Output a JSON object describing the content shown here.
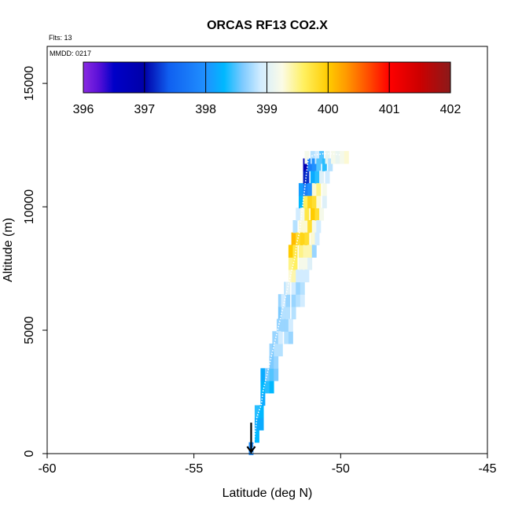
{
  "chart_data": {
    "type": "heatmap",
    "title": "ORCAS RF13 CO2.X",
    "xlabel": "Latitude (deg N)",
    "ylabel": "Altitude (m)",
    "annotations": {
      "flights": "Flts: 13",
      "date": "MMDD: 0217"
    },
    "xlim": [
      -60,
      -45
    ],
    "ylim": [
      0,
      16500
    ],
    "x_ticks": [
      -60,
      -55,
      -50,
      -45
    ],
    "y_ticks": [
      0,
      5000,
      10000,
      15000
    ],
    "colorbar": {
      "range": [
        396,
        402
      ],
      "ticks": [
        396,
        397,
        398,
        399,
        400,
        401,
        402
      ],
      "palette": [
        {
          "v": 396.0,
          "c": "#8a2be2"
        },
        {
          "v": 396.25,
          "c": "#5a10d8"
        },
        {
          "v": 396.5,
          "c": "#0000c8"
        },
        {
          "v": 397.0,
          "c": "#0000a8"
        },
        {
          "v": 397.4,
          "c": "#1060f0"
        },
        {
          "v": 398.0,
          "c": "#2090ff"
        },
        {
          "v": 398.3,
          "c": "#00b8ff"
        },
        {
          "v": 398.6,
          "c": "#7ccaff"
        },
        {
          "v": 398.9,
          "c": "#d2ecff"
        },
        {
          "v": 399.25,
          "c": "#fbfbe6"
        },
        {
          "v": 399.6,
          "c": "#fff060"
        },
        {
          "v": 400.0,
          "c": "#ffcc00"
        },
        {
          "v": 400.3,
          "c": "#ff9900"
        },
        {
          "v": 400.7,
          "c": "#ff4400"
        },
        {
          "v": 401.0,
          "c": "#ff0000"
        },
        {
          "v": 401.5,
          "c": "#cc0000"
        },
        {
          "v": 402.0,
          "c": "#8b1a1a"
        }
      ]
    },
    "cells": [
      [
        -53.05,
        200,
        398.0
      ],
      [
        -52.85,
        700,
        398.3
      ],
      [
        -52.85,
        1200,
        398.2
      ],
      [
        -52.85,
        1700,
        398.4
      ],
      [
        -52.7,
        1200,
        398.2
      ],
      [
        -52.7,
        1700,
        398.3
      ],
      [
        -52.65,
        2200,
        398.2
      ],
      [
        -52.65,
        2700,
        398.3
      ],
      [
        -52.65,
        3200,
        398.2
      ],
      [
        -52.5,
        2700,
        398.4
      ],
      [
        -52.5,
        3200,
        398.6
      ],
      [
        -52.35,
        2700,
        398.3
      ],
      [
        -52.35,
        3200,
        398.5
      ],
      [
        -52.35,
        3700,
        398.6
      ],
      [
        -52.35,
        4200,
        398.7
      ],
      [
        -52.25,
        3700,
        398.6
      ],
      [
        -52.25,
        4200,
        398.6
      ],
      [
        -52.25,
        4700,
        398.7
      ],
      [
        -52.2,
        3200,
        398.6
      ],
      [
        -52.2,
        3700,
        398.7
      ],
      [
        -52.2,
        4200,
        398.8
      ],
      [
        -52.1,
        4700,
        398.7
      ],
      [
        -52.1,
        5200,
        398.7
      ],
      [
        -52.05,
        4200,
        398.8
      ],
      [
        -52.05,
        4700,
        398.9
      ],
      [
        -52.05,
        5700,
        398.6
      ],
      [
        -52.05,
        6200,
        398.7
      ],
      [
        -51.95,
        5200,
        398.7
      ],
      [
        -51.95,
        5700,
        398.8
      ],
      [
        -51.95,
        6200,
        398.9
      ],
      [
        -51.85,
        4700,
        398.8
      ],
      [
        -51.85,
        5200,
        398.7
      ],
      [
        -51.85,
        6700,
        398.8
      ],
      [
        -51.8,
        5700,
        398.8
      ],
      [
        -51.8,
        6200,
        398.7
      ],
      [
        -51.8,
        6700,
        399.0
      ],
      [
        -51.7,
        4700,
        398.7
      ],
      [
        -51.7,
        5200,
        398.9
      ],
      [
        -51.7,
        7200,
        399.3
      ],
      [
        -51.7,
        7700,
        399.5
      ],
      [
        -51.7,
        8200,
        400.0
      ],
      [
        -51.6,
        5700,
        398.8
      ],
      [
        -51.6,
        6200,
        398.7
      ],
      [
        -51.6,
        6700,
        398.9
      ],
      [
        -51.6,
        7200,
        399.4
      ],
      [
        -51.6,
        8700,
        400.1
      ],
      [
        -51.55,
        7700,
        399.6
      ],
      [
        -51.55,
        8200,
        399.7
      ],
      [
        -51.55,
        9200,
        398.8
      ],
      [
        -51.45,
        6200,
        398.8
      ],
      [
        -51.45,
        6700,
        398.7
      ],
      [
        -51.45,
        7200,
        398.9
      ],
      [
        -51.45,
        8700,
        399.8
      ],
      [
        -51.45,
        9700,
        398.9
      ],
      [
        -51.35,
        7700,
        399.2
      ],
      [
        -51.35,
        8200,
        399.5
      ],
      [
        -51.35,
        9200,
        399.3
      ],
      [
        -51.35,
        10200,
        398.3
      ],
      [
        -51.35,
        10700,
        398.1
      ],
      [
        -51.3,
        6200,
        398.9
      ],
      [
        -51.3,
        6700,
        398.8
      ],
      [
        -51.3,
        7200,
        398.9
      ],
      [
        -51.3,
        8700,
        399.9
      ],
      [
        -51.3,
        9700,
        399.2
      ],
      [
        -51.2,
        7700,
        399.2
      ],
      [
        -51.2,
        8200,
        399.4
      ],
      [
        -51.2,
        9200,
        399.3
      ],
      [
        -51.2,
        10200,
        399.6
      ],
      [
        -51.2,
        10700,
        397.8
      ],
      [
        -51.2,
        11200,
        397.1
      ],
      [
        -51.2,
        11700,
        396.8
      ],
      [
        -51.15,
        7200,
        398.9
      ],
      [
        -51.15,
        8700,
        399.8
      ],
      [
        -51.15,
        9700,
        399.7
      ],
      [
        -51.15,
        11200,
        397.2
      ],
      [
        -51.15,
        12000,
        399.2
      ],
      [
        -51.05,
        7700,
        399.0
      ],
      [
        -51.05,
        8200,
        399.4
      ],
      [
        -51.05,
        9200,
        399.8
      ],
      [
        -51.05,
        10200,
        399.9
      ],
      [
        -51.05,
        10700,
        398.0
      ],
      [
        -51.05,
        11700,
        397.8
      ],
      [
        -50.95,
        8700,
        399.3
      ],
      [
        -50.95,
        9700,
        400.0
      ],
      [
        -50.95,
        11200,
        398.2
      ],
      [
        -50.95,
        12000,
        398.8
      ],
      [
        -50.9,
        8200,
        398.7
      ],
      [
        -50.9,
        9200,
        399.2
      ],
      [
        -50.9,
        10200,
        399.8
      ],
      [
        -50.9,
        10700,
        399.3
      ],
      [
        -50.9,
        11700,
        398.0
      ],
      [
        -50.8,
        8700,
        398.9
      ],
      [
        -50.8,
        9700,
        399.8
      ],
      [
        -50.8,
        11200,
        398.4
      ],
      [
        -50.8,
        12000,
        398.9
      ],
      [
        -50.75,
        9200,
        398.9
      ],
      [
        -50.75,
        10200,
        399.3
      ],
      [
        -50.75,
        10700,
        399.5
      ],
      [
        -50.75,
        11700,
        398.5
      ],
      [
        -50.65,
        9700,
        399.2
      ],
      [
        -50.65,
        11200,
        399.0
      ],
      [
        -50.65,
        12000,
        398.5
      ],
      [
        -50.55,
        10200,
        399.0
      ],
      [
        -50.55,
        10700,
        399.2
      ],
      [
        -50.55,
        11700,
        398.4
      ],
      [
        -50.45,
        11200,
        398.9
      ],
      [
        -50.45,
        12000,
        399.1
      ],
      [
        -50.35,
        11700,
        398.8
      ],
      [
        -50.25,
        12000,
        399.2
      ],
      [
        -50.1,
        12000,
        399.1
      ],
      [
        -49.95,
        12000,
        399.2
      ],
      [
        -49.8,
        12000,
        399.3
      ]
    ],
    "track": [
      [
        -53.0,
        0
      ],
      [
        -52.95,
        500
      ],
      [
        -52.9,
        1000
      ],
      [
        -52.85,
        1500
      ],
      [
        -52.7,
        2000
      ],
      [
        -52.65,
        2500
      ],
      [
        -52.55,
        3000
      ],
      [
        -52.45,
        3500
      ],
      [
        -52.35,
        4000
      ],
      [
        -52.25,
        4500
      ],
      [
        -52.15,
        5000
      ],
      [
        -52.05,
        5500
      ],
      [
        -51.95,
        6000
      ],
      [
        -51.85,
        6500
      ],
      [
        -51.75,
        7000
      ],
      [
        -51.65,
        7500
      ],
      [
        -51.55,
        8000
      ],
      [
        -51.5,
        8500
      ],
      [
        -51.4,
        9000
      ],
      [
        -51.35,
        9500
      ],
      [
        -51.3,
        10000
      ],
      [
        -51.25,
        10500
      ],
      [
        -51.2,
        11000
      ],
      [
        -51.15,
        11500
      ],
      [
        -51.1,
        12000
      ],
      [
        -50.9,
        12100
      ],
      [
        -50.6,
        12150
      ],
      [
        -50.3,
        12150
      ],
      [
        -50.0,
        12100
      ]
    ],
    "arrow": {
      "x": -53.05,
      "y_from": 650,
      "y_to": 0
    }
  }
}
